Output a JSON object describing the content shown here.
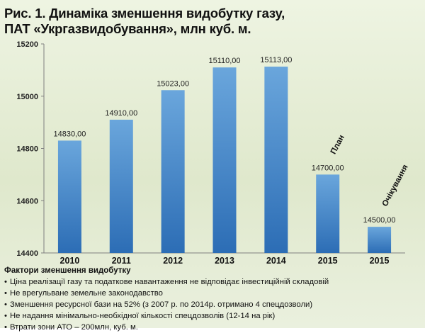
{
  "title_line1": "Рис. 1. Динаміка зменшення видобутку газу,",
  "title_line2": "ПАТ «Укргазвидобування», млн куб. м.",
  "chart_data": {
    "type": "bar",
    "categories": [
      "2010",
      "2011",
      "2012",
      "2013",
      "2014",
      "2015",
      "2015"
    ],
    "values": [
      14830,
      14910,
      15023,
      15110,
      15113,
      14700,
      14500
    ],
    "value_labels": [
      "14830,00",
      "14910,00",
      "15023,00",
      "15110,00",
      "15113,00",
      "14700,00",
      "14500,00"
    ],
    "bar_annotations": [
      "",
      "",
      "",
      "",
      "",
      "План",
      "Очікування"
    ],
    "ylim": [
      14400,
      15200
    ],
    "yticks": [
      14400,
      14600,
      14800,
      15000,
      15200
    ],
    "bar_color_top": "#6aa6dc",
    "bar_color_bottom": "#2c6db5",
    "grid": false,
    "legend": false
  },
  "factors": {
    "heading": "Фактори зменшення видобутку",
    "items": [
      "Ціна реалізації газу та податкове навантаження не відповідає інвестиційній складовій",
      "Не врегульване земельне законодавство",
      "Зменшення ресурсної бази на 52% (з 2007 р. по 2014р. отримано 4 спецдозволи)",
      "Не надання мінімально-необхідної кількості спецдозволів (12-14 на рік)",
      "Втрати зони АТО – 200млн, куб. м."
    ]
  }
}
